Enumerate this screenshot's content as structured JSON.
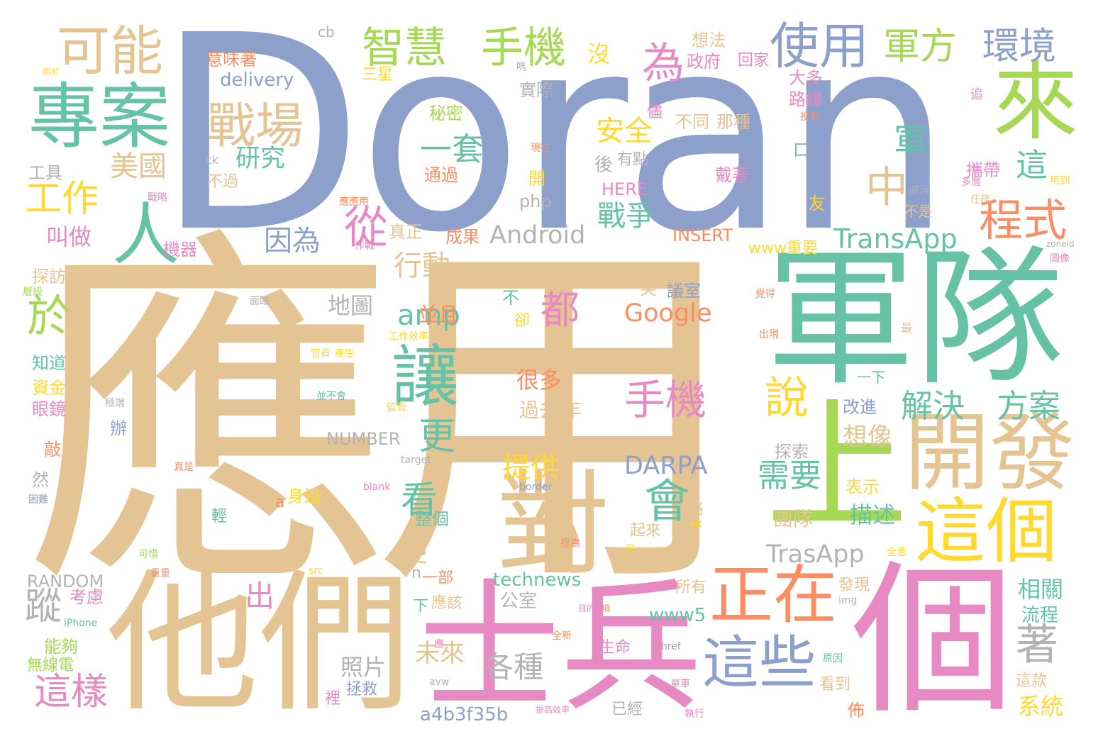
{
  "palette": {
    "blue": "#8da0cb",
    "tan": "#e5c494",
    "teal": "#66c2a5",
    "pink": "#e78ac3",
    "orange": "#fc8d62",
    "green": "#a6d854",
    "yellow": "#ffd92f",
    "gray": "#b3b3b3"
  },
  "words": [
    {
      "text": "Doran",
      "color": "blue"
    },
    {
      "text": "應用",
      "color": "tan"
    },
    {
      "text": "軍隊",
      "color": "teal"
    },
    {
      "text": "他們",
      "color": "tan"
    },
    {
      "text": "士兵",
      "color": "pink"
    },
    {
      "text": "個",
      "color": "pink"
    },
    {
      "text": "專案",
      "color": "teal"
    },
    {
      "text": "可能",
      "color": "tan"
    },
    {
      "text": "來",
      "color": "green"
    },
    {
      "text": "開發",
      "color": "tan"
    },
    {
      "text": "上",
      "color": "green"
    },
    {
      "text": "對",
      "color": "tan"
    },
    {
      "text": "這個",
      "color": "yellow"
    },
    {
      "text": "正在",
      "color": "orange"
    },
    {
      "text": "這些",
      "color": "blue"
    },
    {
      "text": "讓",
      "color": "teal"
    },
    {
      "text": "智慧",
      "color": "green"
    },
    {
      "text": "手機",
      "color": "green"
    },
    {
      "text": "使用",
      "color": "blue"
    },
    {
      "text": "軍方",
      "color": "green"
    },
    {
      "text": "環境",
      "color": "blue"
    },
    {
      "text": "戰場",
      "color": "tan"
    },
    {
      "text": "為",
      "color": "pink"
    },
    {
      "text": "人",
      "color": "teal"
    },
    {
      "text": "程式",
      "color": "orange"
    },
    {
      "text": "工作",
      "color": "yellow"
    },
    {
      "text": "美國",
      "color": "tan"
    },
    {
      "text": "從",
      "color": "pink"
    },
    {
      "text": "於",
      "color": "green"
    },
    {
      "text": "說",
      "color": "yellow"
    },
    {
      "text": "會",
      "color": "teal"
    },
    {
      "text": "著",
      "color": "gray"
    },
    {
      "text": "中",
      "color": "tan"
    },
    {
      "text": "軍",
      "color": "teal"
    },
    {
      "text": "這",
      "color": "teal"
    },
    {
      "text": "都",
      "color": "pink"
    },
    {
      "text": "手機",
      "color": "pink"
    },
    {
      "text": "看",
      "color": "teal"
    },
    {
      "text": "更",
      "color": "teal"
    },
    {
      "text": "這樣",
      "color": "pink"
    },
    {
      "text": "蹤",
      "color": "gray"
    },
    {
      "text": "出",
      "color": "pink"
    },
    {
      "text": "需要",
      "color": "teal"
    },
    {
      "text": "解決",
      "color": "teal"
    },
    {
      "text": "方案",
      "color": "teal"
    },
    {
      "text": "一套",
      "color": "teal"
    },
    {
      "text": "安全",
      "color": "yellow"
    },
    {
      "text": "研究",
      "color": "teal"
    },
    {
      "text": "因為",
      "color": "blue"
    },
    {
      "text": "戰爭",
      "color": "teal"
    },
    {
      "text": "行動",
      "color": "tan"
    },
    {
      "text": "amp",
      "color": "teal"
    },
    {
      "text": "Android",
      "color": "gray"
    },
    {
      "text": "TransApp",
      "color": "teal"
    },
    {
      "text": "TrasApp",
      "color": "gray"
    },
    {
      "text": "Google",
      "color": "orange"
    },
    {
      "text": "DARPA",
      "color": "blue"
    },
    {
      "text": "提供",
      "color": "yellow"
    },
    {
      "text": "各種",
      "color": "gray"
    },
    {
      "text": "便",
      "color": "tan"
    },
    {
      "text": "未來",
      "color": "tan"
    },
    {
      "text": "照片",
      "color": "gray"
    },
    {
      "text": "叫做",
      "color": "pink"
    },
    {
      "text": "地圖",
      "color": "gray"
    },
    {
      "text": "並且",
      "color": "orange"
    },
    {
      "text": "想像",
      "color": "tan"
    },
    {
      "text": "相關",
      "color": "teal"
    },
    {
      "text": "流程",
      "color": "teal"
    },
    {
      "text": "系統",
      "color": "yellow"
    },
    {
      "text": "很多",
      "color": "orange"
    },
    {
      "text": "過去",
      "color": "tan"
    },
    {
      "text": "年",
      "color": "tan"
    },
    {
      "text": "描述",
      "color": "teal"
    },
    {
      "text": "團隊",
      "color": "tan"
    },
    {
      "text": "technews",
      "color": "teal"
    },
    {
      "text": "www5",
      "color": "teal"
    },
    {
      "text": "a4b3f35b",
      "color": "blue"
    },
    {
      "text": "RANDOM",
      "color": "gray"
    },
    {
      "text": "NUMBER",
      "color": "gray"
    },
    {
      "text": "INSERT",
      "color": "orange"
    },
    {
      "text": "HERE",
      "color": "pink"
    },
    {
      "text": "php",
      "color": "gray"
    },
    {
      "text": "delivery",
      "color": "blue"
    },
    {
      "text": "cb",
      "color": "gray"
    },
    {
      "text": "ck",
      "color": "gray"
    },
    {
      "text": "www重要",
      "color": "yellow"
    },
    {
      "text": "意味著",
      "color": "orange"
    },
    {
      "text": "政府",
      "color": "pink"
    },
    {
      "text": "想法",
      "color": "tan"
    },
    {
      "text": "回家",
      "color": "pink"
    },
    {
      "text": "沒",
      "color": "yellow"
    },
    {
      "text": "大多",
      "color": "pink"
    },
    {
      "text": "路線",
      "color": "pink"
    },
    {
      "text": "三星",
      "color": "yellow"
    },
    {
      "text": "實際",
      "color": "gray"
    },
    {
      "text": "秘密",
      "color": "green"
    },
    {
      "text": "儘",
      "color": "pink"
    },
    {
      "text": "不同",
      "color": "tan"
    },
    {
      "text": "那種",
      "color": "tan"
    },
    {
      "text": "口袋",
      "color": "blue"
    },
    {
      "text": "後",
      "color": "gray"
    },
    {
      "text": "有點",
      "color": "gray"
    },
    {
      "text": "戴著",
      "color": "pink"
    },
    {
      "text": "通過",
      "color": "orange"
    },
    {
      "text": "工具",
      "color": "gray"
    },
    {
      "text": "不過",
      "color": "tan"
    },
    {
      "text": "開",
      "color": "yellow"
    },
    {
      "text": "攜帶",
      "color": "pink"
    },
    {
      "text": "友",
      "color": "yellow"
    },
    {
      "text": "不是",
      "color": "tan"
    },
    {
      "text": "機器",
      "color": "pink"
    },
    {
      "text": "真正",
      "color": "tan"
    },
    {
      "text": "成果",
      "color": "orange"
    },
    {
      "text": "探訪",
      "color": "tan"
    },
    {
      "text": "知道",
      "color": "teal"
    },
    {
      "text": "資金",
      "color": "yellow"
    },
    {
      "text": "眼鏡",
      "color": "pink"
    },
    {
      "text": "辦",
      "color": "blue"
    },
    {
      "text": "敲",
      "color": "orange"
    },
    {
      "text": "然",
      "color": "gray"
    },
    {
      "text": "考慮",
      "color": "pink"
    },
    {
      "text": "能夠",
      "color": "green"
    },
    {
      "text": "無線電",
      "color": "green"
    },
    {
      "text": "笑",
      "color": "tan"
    },
    {
      "text": "議室",
      "color": "blue"
    },
    {
      "text": "不",
      "color": "teal"
    },
    {
      "text": "卻",
      "color": "yellow"
    },
    {
      "text": "探索",
      "color": "gray"
    },
    {
      "text": "表示",
      "color": "yellow"
    },
    {
      "text": "改進",
      "color": "blue"
    },
    {
      "text": "身邊",
      "color": "yellow"
    },
    {
      "text": "a",
      "color": "orange"
    },
    {
      "text": "輕",
      "color": "teal"
    },
    {
      "text": "路",
      "color": "tan"
    },
    {
      "text": "整個",
      "color": "teal"
    },
    {
      "text": "起來",
      "color": "tan"
    },
    {
      "text": "一下",
      "color": "teal"
    },
    {
      "text": "tw",
      "color": "tan"
    },
    {
      "text": "n",
      "color": "gray"
    },
    {
      "text": "一部",
      "color": "orange"
    },
    {
      "text": "下",
      "color": "teal"
    },
    {
      "text": "應該",
      "color": "tan"
    },
    {
      "text": "公室",
      "color": "gray"
    },
    {
      "text": "所有",
      "color": "tan"
    },
    {
      "text": "發現",
      "color": "tan"
    },
    {
      "text": "生命",
      "color": "pink"
    },
    {
      "text": "拯救",
      "color": "blue"
    },
    {
      "text": "裡",
      "color": "pink"
    },
    {
      "text": "看到",
      "color": "tan"
    },
    {
      "text": "佈",
      "color": "orange"
    },
    {
      "text": "已經",
      "color": "gray"
    },
    {
      "text": "這款",
      "color": "tan"
    },
    {
      "text": "用於",
      "color": "yellow"
    },
    {
      "text": "用到",
      "color": "yellow"
    },
    {
      "text": "追",
      "color": "pink"
    },
    {
      "text": "投射",
      "color": "orange"
    },
    {
      "text": "現在",
      "color": "orange"
    },
    {
      "text": "多層",
      "color": "pink"
    },
    {
      "text": "將消",
      "color": "gray"
    },
    {
      "text": "任務",
      "color": "tan"
    },
    {
      "text": "zoneid",
      "color": "gray"
    },
    {
      "text": "圖像",
      "color": "pink"
    },
    {
      "text": "戰略",
      "color": "pink"
    },
    {
      "text": "應應用",
      "color": "orange"
    },
    {
      "text": "作戰",
      "color": "pink"
    },
    {
      "text": "層級",
      "color": "green"
    },
    {
      "text": "面臨",
      "color": "gray"
    },
    {
      "text": "工作效率",
      "color": "yellow"
    },
    {
      "text": "官員",
      "color": "yellow"
    },
    {
      "text": "產生",
      "color": "yellow"
    },
    {
      "text": "並不會",
      "color": "teal"
    },
    {
      "text": "極端",
      "color": "gray"
    },
    {
      "text": "監管",
      "color": "yellow"
    },
    {
      "text": "覺得",
      "color": "orange"
    },
    {
      "text": "出現",
      "color": "orange"
    },
    {
      "text": "最",
      "color": "tan"
    },
    {
      "text": "target",
      "color": "gray"
    },
    {
      "text": "blank",
      "color": "pink"
    },
    {
      "text": "border",
      "color": "blue"
    },
    {
      "text": "困難",
      "color": "blue"
    },
    {
      "text": "真是",
      "color": "orange"
    },
    {
      "text": "alt",
      "color": "yellow"
    },
    {
      "text": "已",
      "color": "yellow"
    },
    {
      "text": "提高",
      "color": "orange"
    },
    {
      "text": "全息",
      "color": "yellow"
    },
    {
      "text": "可惜",
      "color": "green"
    },
    {
      "text": "src",
      "color": "yellow"
    },
    {
      "text": "重重",
      "color": "orange"
    },
    {
      "text": "img",
      "color": "gray"
    },
    {
      "text": "iPhone",
      "color": "teal"
    },
    {
      "text": "全新",
      "color": "orange"
    },
    {
      "text": "目的",
      "color": "pink"
    },
    {
      "text": "項",
      "color": "orange"
    },
    {
      "text": "href",
      "color": "blue"
    },
    {
      "text": "原因",
      "color": "teal"
    },
    {
      "text": "應",
      "color": "pink"
    },
    {
      "text": "avw",
      "color": "gray"
    },
    {
      "text": "單車",
      "color": "pink"
    },
    {
      "text": "提高效率",
      "color": "pink"
    },
    {
      "text": "執行",
      "color": "pink"
    },
    {
      "text": "嗎",
      "color": "gray"
    }
  ]
}
